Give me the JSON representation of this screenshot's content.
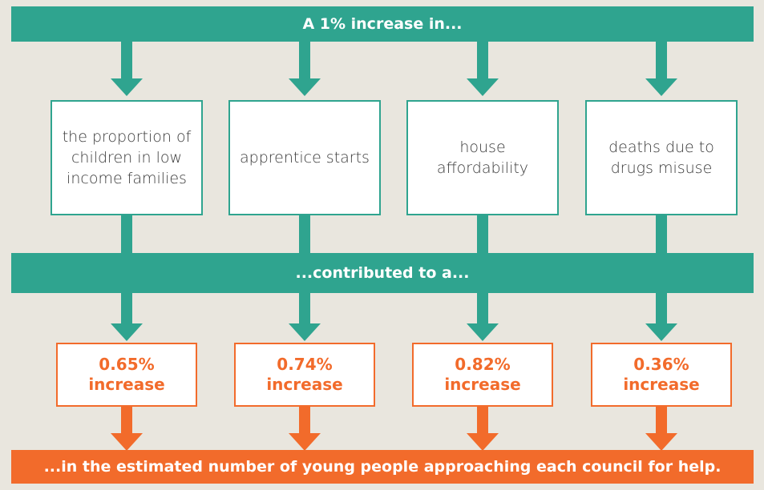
{
  "header": {
    "title": "A 1% increase in..."
  },
  "factors": [
    {
      "label": "the proportion of children in low income families"
    },
    {
      "label": "apprentice starts"
    },
    {
      "label": "house affordability"
    },
    {
      "label": "deaths due to drugs misuse"
    }
  ],
  "middle": {
    "label": "...contributed to a..."
  },
  "results": [
    {
      "value": "0.65%",
      "label": "increase"
    },
    {
      "value": "0.74%",
      "label": "increase"
    },
    {
      "value": "0.82%",
      "label": "increase"
    },
    {
      "value": "0.36%",
      "label": "increase"
    }
  ],
  "footer": {
    "label": "...in the estimated number of young people approaching each council for help."
  }
}
